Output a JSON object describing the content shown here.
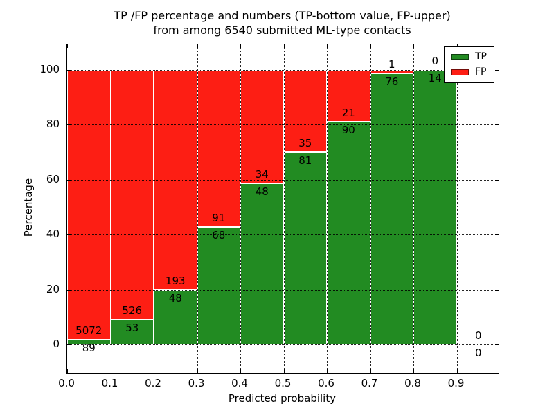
{
  "title": {
    "line1": "TP /FP percentage and numbers (TP-bottom value, FP-upper)",
    "line2": "from among 6540 submitted ML-type contacts"
  },
  "chart_data": {
    "type": "bar",
    "stacked": true,
    "normalized_to_percent": true,
    "total_contacts": 6540,
    "bin_width": 0.1,
    "bin_starts": [
      "0.0",
      "0.1",
      "0.2",
      "0.3",
      "0.4",
      "0.5",
      "0.6",
      "0.7",
      "0.8",
      "0.9"
    ],
    "series": [
      {
        "name": "TP",
        "color": "#228b22",
        "values": [
          89,
          53,
          48,
          68,
          48,
          81,
          90,
          76,
          14,
          0
        ]
      },
      {
        "name": "FP",
        "color": "#fd1e14",
        "values": [
          5072,
          526,
          193,
          91,
          34,
          35,
          21,
          1,
          0,
          0
        ]
      }
    ],
    "xlabel": "Predicted probability",
    "ylabel": "Percentage",
    "xticks": [
      "0.0",
      "0.1",
      "0.2",
      "0.3",
      "0.4",
      "0.5",
      "0.6",
      "0.7",
      "0.8",
      "0.9"
    ],
    "yticks": [
      0,
      20,
      40,
      60,
      80,
      100
    ],
    "xlim": [
      0.0,
      1.0
    ],
    "ylim": [
      -10.3,
      109.2
    ],
    "grid": "dotted",
    "bar_edge_color": "#ffffff",
    "legend_position": "upper right"
  },
  "legend": {
    "items": [
      {
        "label": "TP",
        "color": "#228b22"
      },
      {
        "label": "FP",
        "color": "#fd1e14"
      }
    ]
  }
}
